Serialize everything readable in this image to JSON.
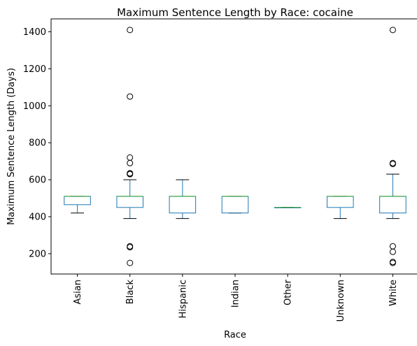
{
  "chart_data": {
    "type": "boxplot",
    "title": "Maximum Sentence Length by Race: cocaine",
    "xlabel": "Race",
    "ylabel": "Maximum Sentence Length (Days)",
    "ylim": [
      90,
      1470
    ],
    "yticks": [
      200,
      400,
      600,
      800,
      1000,
      1200,
      1400
    ],
    "grid": false,
    "colors": {
      "box": "#1f77b4",
      "median": "#2ca02c",
      "whisker": "#000000",
      "flier": "#000000"
    },
    "categories": [
      "Asian",
      "Black",
      "Hispanic",
      "Indian",
      "Other",
      "Unknown",
      "White"
    ],
    "boxes": [
      {
        "category": "Asian",
        "whislo": 420,
        "q1": 465,
        "med": 510,
        "q3": 510,
        "whishi": 510,
        "fliers": []
      },
      {
        "category": "Black",
        "whislo": 390,
        "q1": 450,
        "med": 510,
        "q3": 510,
        "whishi": 600,
        "fliers": [
          150,
          235,
          240,
          630,
          632,
          635,
          690,
          720,
          1050,
          1410
        ]
      },
      {
        "category": "Hispanic",
        "whislo": 390,
        "q1": 420,
        "med": 510,
        "q3": 510,
        "whishi": 600,
        "fliers": []
      },
      {
        "category": "Indian",
        "whislo": 420,
        "q1": 420,
        "med": 510,
        "q3": 510,
        "whishi": 510,
        "fliers": []
      },
      {
        "category": "Other",
        "whislo": 450,
        "q1": 450,
        "med": 450,
        "q3": 450,
        "whishi": 450,
        "fliers": []
      },
      {
        "category": "Unknown",
        "whislo": 390,
        "q1": 450,
        "med": 510,
        "q3": 510,
        "whishi": 510,
        "fliers": []
      },
      {
        "category": "White",
        "whislo": 390,
        "q1": 420,
        "med": 510,
        "q3": 510,
        "whishi": 630,
        "fliers": [
          150,
          155,
          210,
          240,
          685,
          690,
          1410
        ]
      }
    ]
  }
}
